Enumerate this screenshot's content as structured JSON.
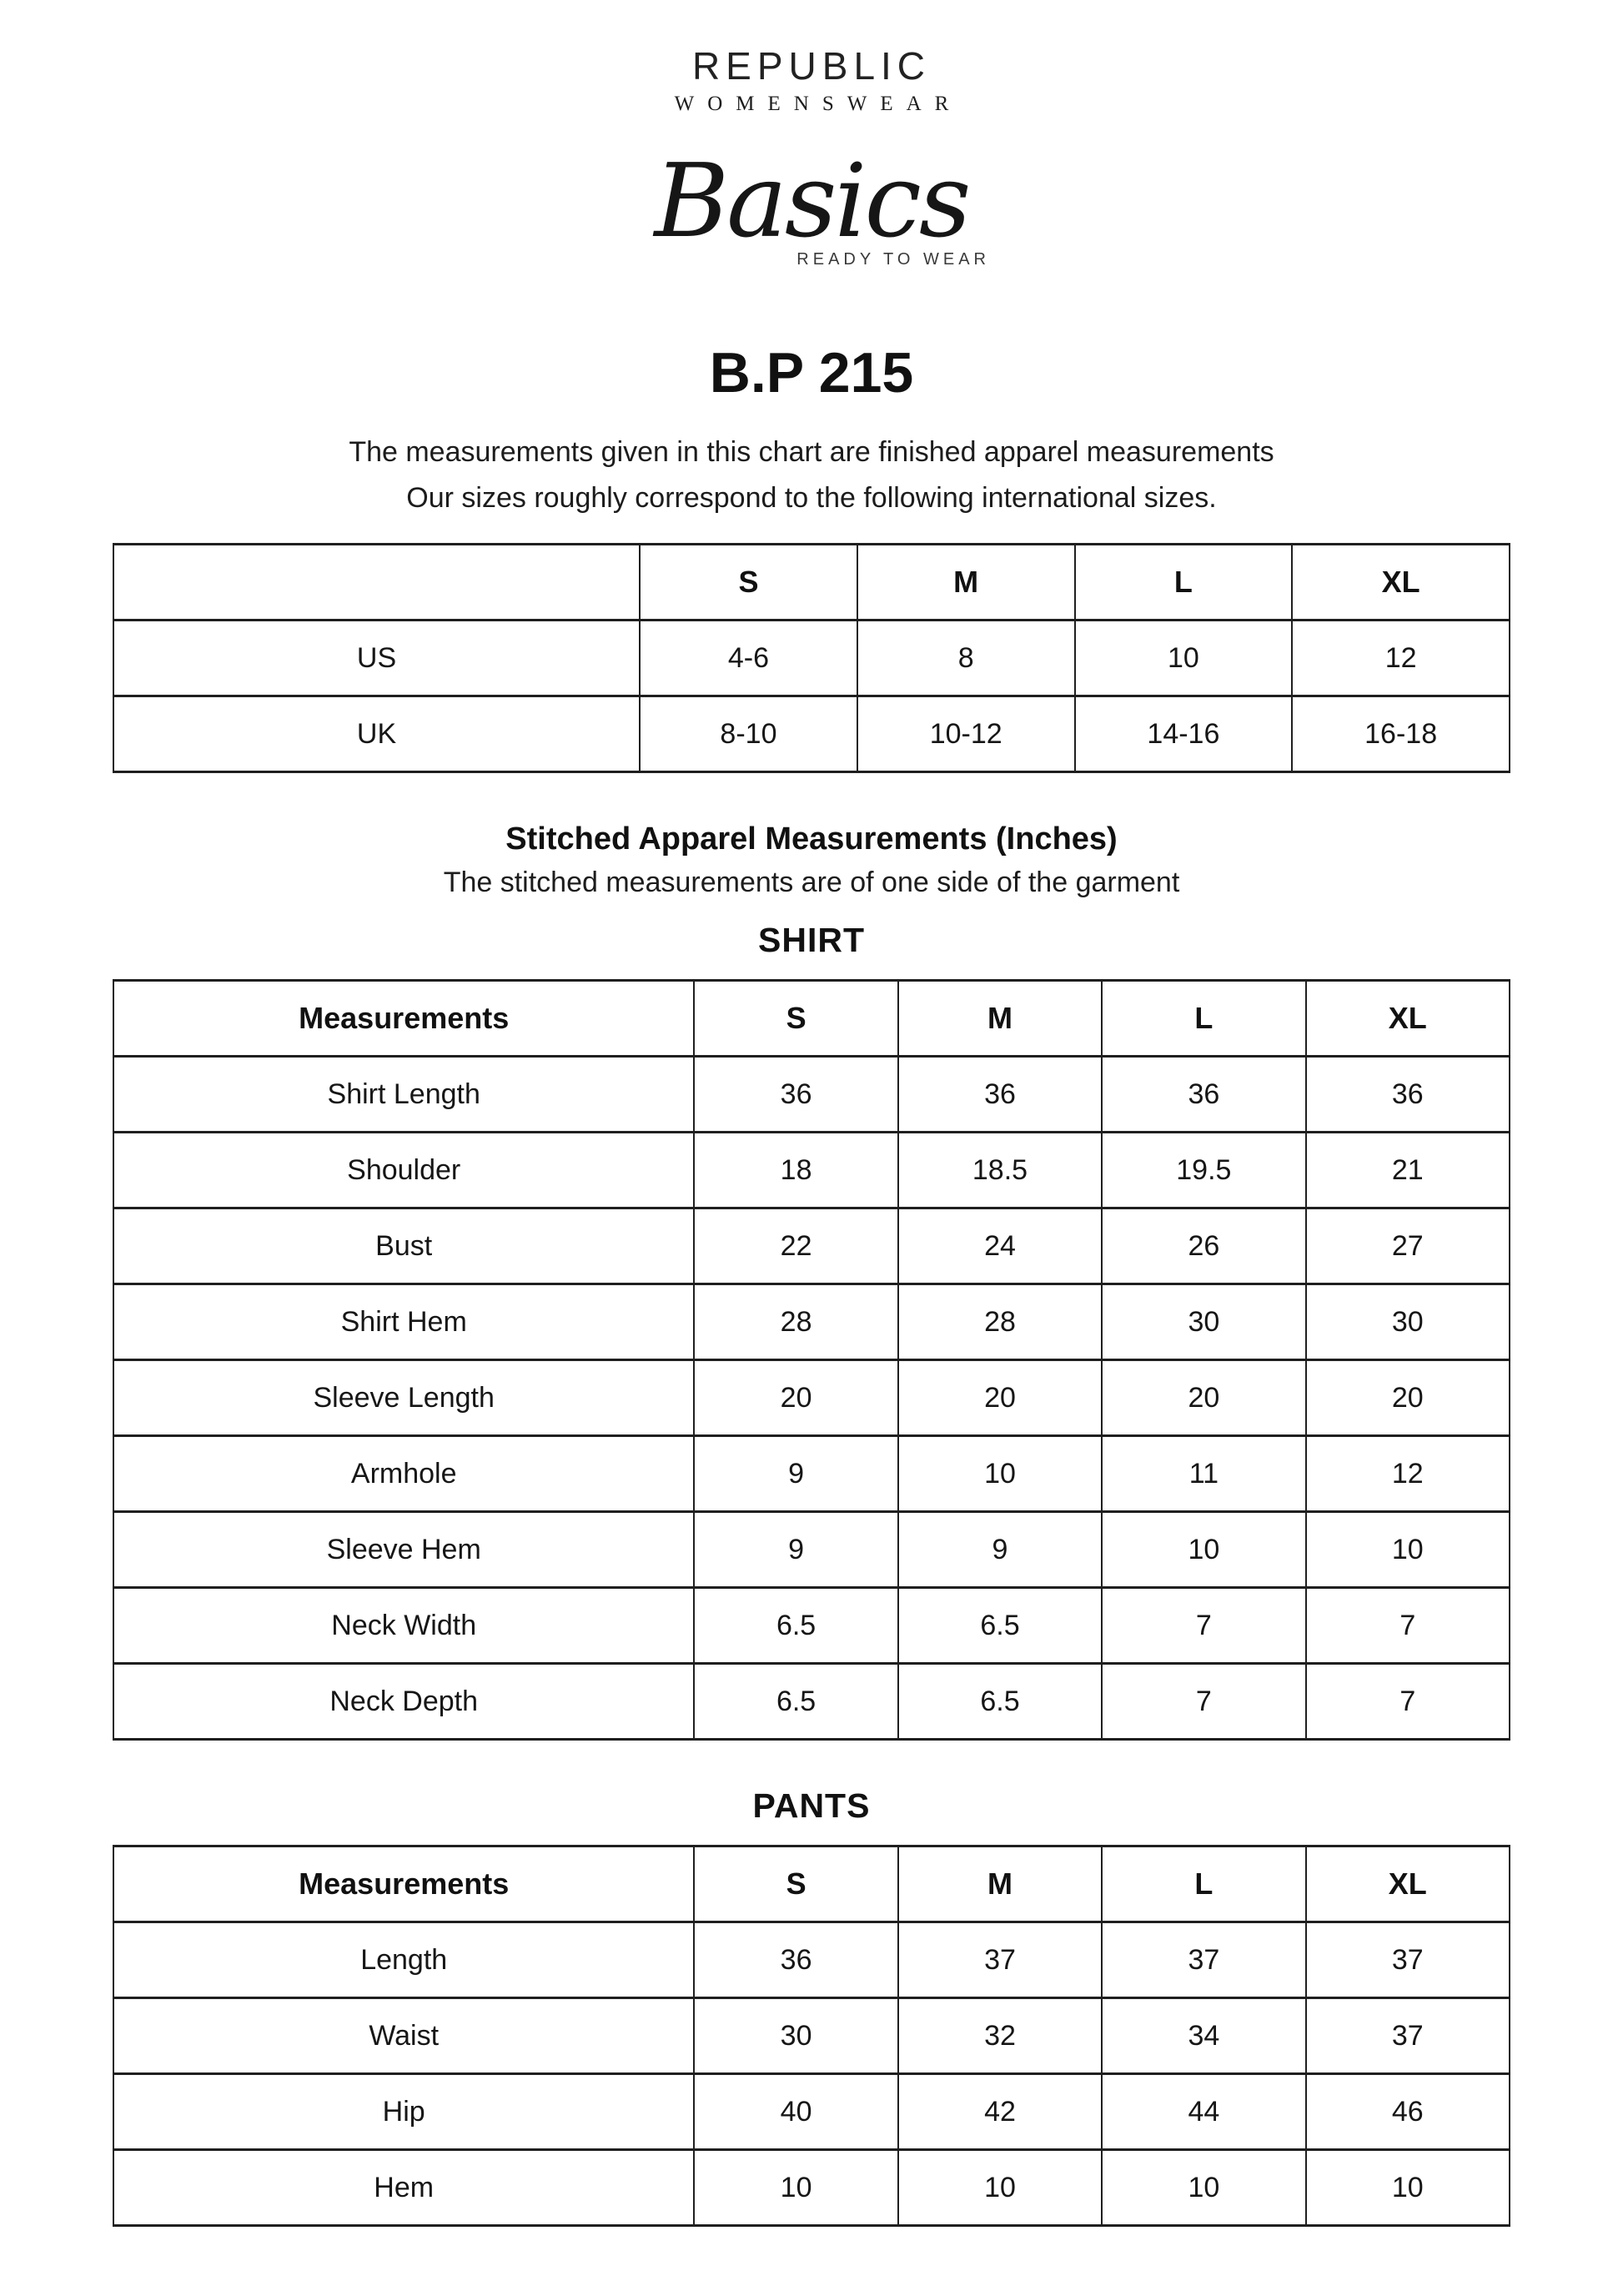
{
  "brand": {
    "name": "REPUBLIC",
    "subname": "WOMENSWEAR",
    "collection": "Basics",
    "collection_tagline": "READY TO WEAR"
  },
  "product_code": "B.P 215",
  "intro": {
    "line1": "The measurements given in this chart are finished apparel measurements",
    "line2": "Our sizes roughly correspond to the following international sizes."
  },
  "size_table": {
    "columns": [
      "",
      "S",
      "M",
      "L",
      "XL"
    ],
    "rows": [
      {
        "label": "US",
        "values": [
          "4-6",
          "8",
          "10",
          "12"
        ]
      },
      {
        "label": "UK",
        "values": [
          "8-10",
          "10-12",
          "14-16",
          "16-18"
        ]
      }
    ]
  },
  "stitched_section": {
    "title": "Stitched Apparel Measurements (Inches)",
    "subtitle": "The stitched measurements are of one side of the garment"
  },
  "shirt_table": {
    "title": "SHIRT",
    "columns": [
      "Measurements",
      "S",
      "M",
      "L",
      "XL"
    ],
    "rows": [
      {
        "label": "Shirt Length",
        "values": [
          "36",
          "36",
          "36",
          "36"
        ]
      },
      {
        "label": "Shoulder",
        "values": [
          "18",
          "18.5",
          "19.5",
          "21"
        ]
      },
      {
        "label": "Bust",
        "values": [
          "22",
          "24",
          "26",
          "27"
        ]
      },
      {
        "label": "Shirt Hem",
        "values": [
          "28",
          "28",
          "30",
          "30"
        ]
      },
      {
        "label": "Sleeve Length",
        "values": [
          "20",
          "20",
          "20",
          "20"
        ]
      },
      {
        "label": "Armhole",
        "values": [
          "9",
          "10",
          "11",
          "12"
        ]
      },
      {
        "label": "Sleeve Hem",
        "values": [
          "9",
          "9",
          "10",
          "10"
        ]
      },
      {
        "label": "Neck Width",
        "values": [
          "6.5",
          "6.5",
          "7",
          "7"
        ]
      },
      {
        "label": "Neck Depth",
        "values": [
          "6.5",
          "6.5",
          "7",
          "7"
        ]
      }
    ]
  },
  "pants_table": {
    "title": "PANTS",
    "columns": [
      "Measurements",
      "S",
      "M",
      "L",
      "XL"
    ],
    "rows": [
      {
        "label": "Length",
        "values": [
          "36",
          "37",
          "37",
          "37"
        ]
      },
      {
        "label": "Waist",
        "values": [
          "30",
          "32",
          "34",
          "37"
        ]
      },
      {
        "label": "Hip",
        "values": [
          "40",
          "42",
          "44",
          "46"
        ]
      },
      {
        "label": "Hem",
        "values": [
          "10",
          "10",
          "10",
          "10"
        ]
      }
    ]
  }
}
